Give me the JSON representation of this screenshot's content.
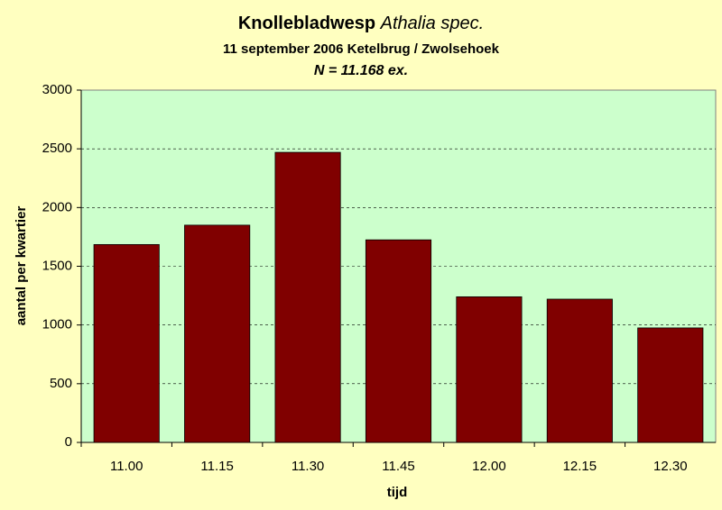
{
  "chart_data": {
    "type": "bar",
    "title": {
      "name": "Knollebladwesp",
      "species": "Athalia spec."
    },
    "subtitle": "11 september 2006 Ketelbrug / Zwolsehoek",
    "note": "N = 11.168 ex.",
    "x_label": "tijd",
    "y_label": "aantal per kwartier",
    "categories": [
      "11.00",
      "11.15",
      "11.30",
      "11.45",
      "12.00",
      "12.15",
      "12.30"
    ],
    "values": [
      1685,
      1850,
      2470,
      1725,
      1240,
      1220,
      975
    ],
    "color": "#800000",
    "ylim": [
      0,
      3000
    ],
    "yticks": [
      0,
      500,
      1000,
      1500,
      2000,
      2500,
      3000
    ],
    "grid": true
  }
}
